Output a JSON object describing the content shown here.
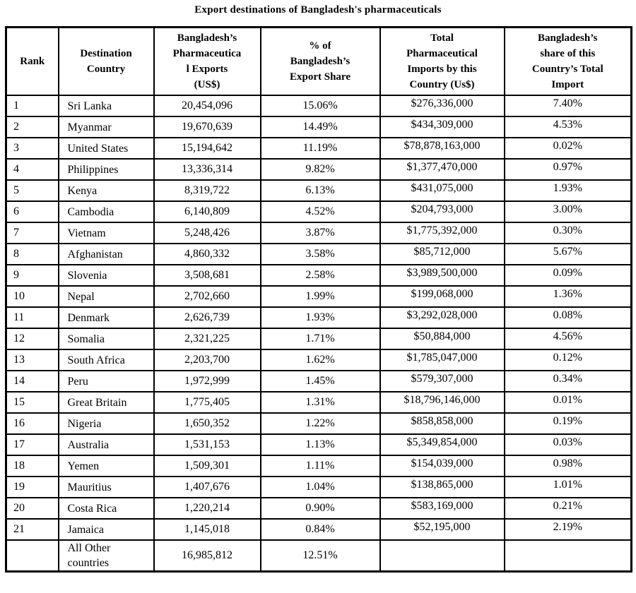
{
  "title": "Export destinations of Bangladesh's pharmaceuticals",
  "table": {
    "columns": [
      {
        "key": "rank",
        "label": "Rank"
      },
      {
        "key": "country",
        "label": "Destination\nCountry"
      },
      {
        "key": "exports",
        "label": "Bangladesh’s\nPharmaceutica\nl Exports\n(US$)"
      },
      {
        "key": "share",
        "label": "% of\nBangladesh’s\nExport Share"
      },
      {
        "key": "imports",
        "label": "Total\nPharmaceutical\nImports by this\nCountry (Us$)"
      },
      {
        "key": "importshare",
        "label": "Bangladesh’s\nshare of this\nCountry’s Total\nImport"
      }
    ],
    "rows": [
      {
        "rank": "1",
        "country": "Sri Lanka",
        "exports": "20,454,096",
        "share": "15.06%",
        "imports": "$276,336,000",
        "importshare": "7.40%"
      },
      {
        "rank": "2",
        "country": "Myanmar",
        "exports": "19,670,639",
        "share": "14.49%",
        "imports": "$434,309,000",
        "importshare": "4.53%"
      },
      {
        "rank": "3",
        "country": "United States",
        "exports": "15,194,642",
        "share": "11.19%",
        "imports": "$78,878,163,000",
        "importshare": "0.02%"
      },
      {
        "rank": "4",
        "country": "Philippines",
        "exports": "13,336,314",
        "share": "9.82%",
        "imports": "$1,377,470,000",
        "importshare": "0.97%"
      },
      {
        "rank": "5",
        "country": "Kenya",
        "exports": "8,319,722",
        "share": "6.13%",
        "imports": "$431,075,000",
        "importshare": "1.93%"
      },
      {
        "rank": "6",
        "country": "Cambodia",
        "exports": "6,140,809",
        "share": "4.52%",
        "imports": "$204,793,000",
        "importshare": "3.00%"
      },
      {
        "rank": "7",
        "country": "Vietnam",
        "exports": "5,248,426",
        "share": "3.87%",
        "imports": "$1,775,392,000",
        "importshare": "0.30%"
      },
      {
        "rank": "8",
        "country": "Afghanistan",
        "exports": "4,860,332",
        "share": "3.58%",
        "imports": "$85,712,000",
        "importshare": "5.67%"
      },
      {
        "rank": "9",
        "country": "Slovenia",
        "exports": "3,508,681",
        "share": "2.58%",
        "imports": "$3,989,500,000",
        "importshare": "0.09%"
      },
      {
        "rank": "10",
        "country": "Nepal",
        "exports": "2,702,660",
        "share": "1.99%",
        "imports": "$199,068,000",
        "importshare": "1.36%"
      },
      {
        "rank": "11",
        "country": "Denmark",
        "exports": "2,626,739",
        "share": "1.93%",
        "imports": "$3,292,028,000",
        "importshare": "0.08%"
      },
      {
        "rank": "12",
        "country": "Somalia",
        "exports": "2,321,225",
        "share": "1.71%",
        "imports": "$50,884,000",
        "importshare": "4.56%"
      },
      {
        "rank": "13",
        "country": "South Africa",
        "exports": "2,203,700",
        "share": "1.62%",
        "imports": "$1,785,047,000",
        "importshare": "0.12%"
      },
      {
        "rank": "14",
        "country": "Peru",
        "exports": "1,972,999",
        "share": "1.45%",
        "imports": "$579,307,000",
        "importshare": "0.34%"
      },
      {
        "rank": "15",
        "country": "Great Britain",
        "exports": "1,775,405",
        "share": "1.31%",
        "imports": "$18,796,146,000",
        "importshare": "0.01%"
      },
      {
        "rank": "16",
        "country": "Nigeria",
        "exports": "1,650,352",
        "share": "1.22%",
        "imports": "$858,858,000",
        "importshare": "0.19%"
      },
      {
        "rank": "17",
        "country": "Australia",
        "exports": "1,531,153",
        "share": "1.13%",
        "imports": "$5,349,854,000",
        "importshare": "0.03%"
      },
      {
        "rank": "18",
        "country": "Yemen",
        "exports": "1,509,301",
        "share": "1.11%",
        "imports": "$154,039,000",
        "importshare": "0.98%"
      },
      {
        "rank": "19",
        "country": "Mauritius",
        "exports": "1,407,676",
        "share": "1.04%",
        "imports": "$138,865,000",
        "importshare": "1.01%"
      },
      {
        "rank": "20",
        "country": "Costa Rica",
        "exports": "1,220,214",
        "share": "0.90%",
        "imports": "$583,169,000",
        "importshare": "0.21%"
      },
      {
        "rank": "21",
        "country": "Jamaica",
        "exports": "1,145,018",
        "share": "0.84%",
        "imports": "$52,195,000",
        "importshare": "2.19%"
      },
      {
        "rank": "",
        "country": "All Other\ncountries",
        "exports": "16,985,812",
        "share": "12.51%",
        "imports": "",
        "importshare": ""
      }
    ]
  }
}
